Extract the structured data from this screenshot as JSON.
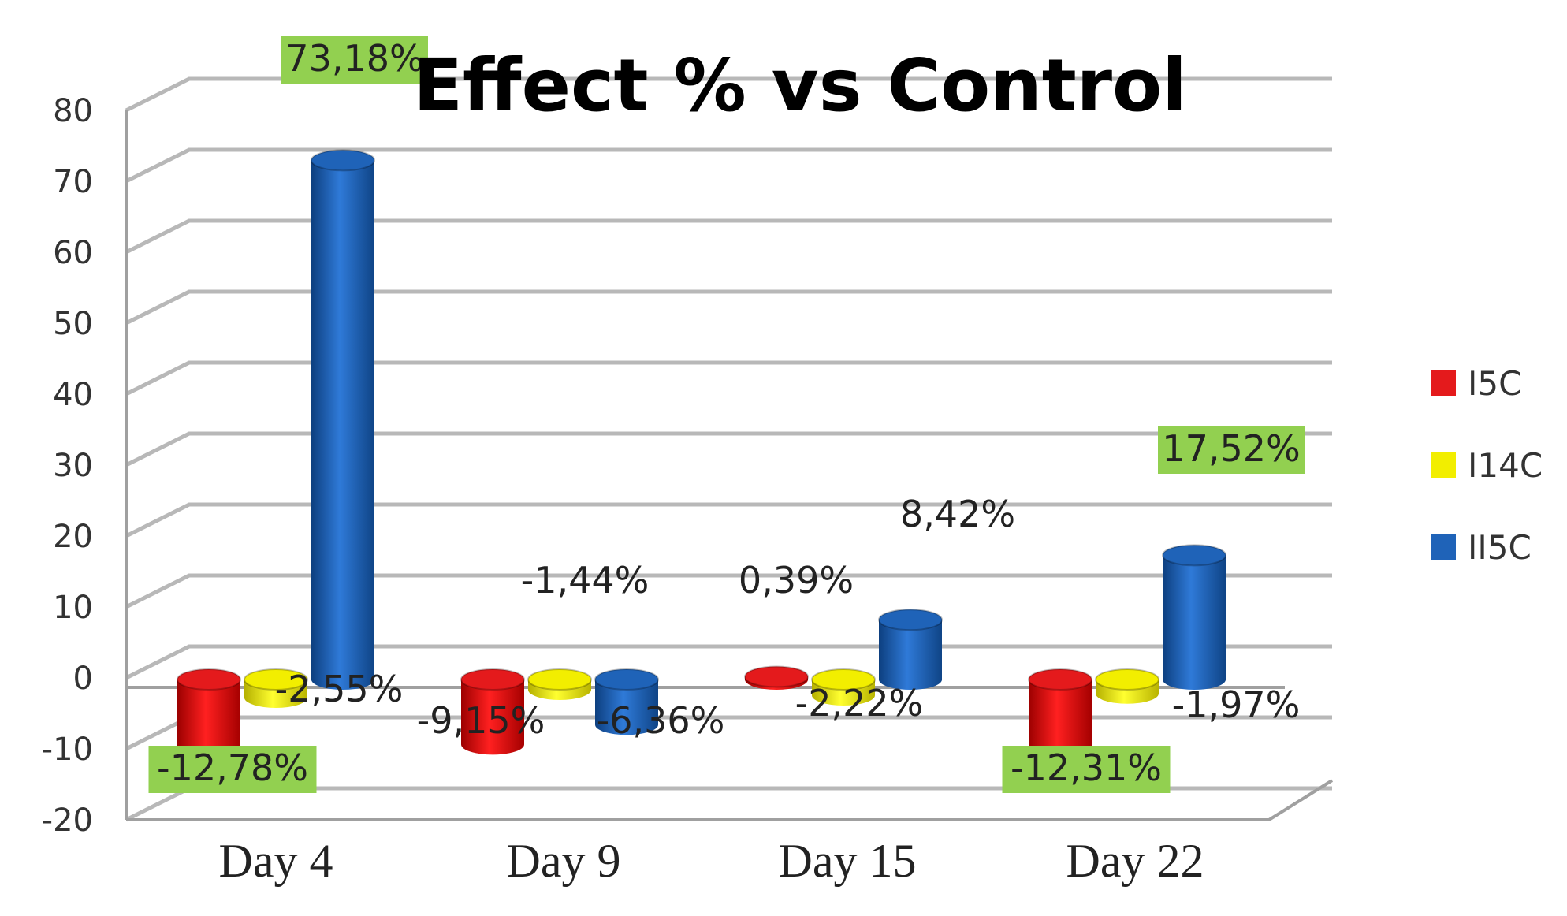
{
  "chart_data": {
    "type": "bar",
    "title": "Effect % vs Control",
    "xlabel": "",
    "ylabel": "",
    "ylim": [
      -20,
      80
    ],
    "yticks": [
      80,
      70,
      60,
      50,
      40,
      30,
      20,
      10,
      0,
      -10,
      -20
    ],
    "grid": true,
    "legend_position": "right",
    "categories": [
      "Day 4",
      "Day 9",
      "Day 15",
      "Day 22"
    ],
    "series": [
      {
        "name": "I5C",
        "color": "#e41a1c",
        "values": [
          -12.78,
          -9.15,
          0.39,
          -12.31
        ],
        "labels": [
          "-12,78%",
          "-9,15%",
          "0,39%",
          "-12,31%"
        ],
        "highlighted": [
          true,
          false,
          false,
          true
        ]
      },
      {
        "name": "I14C",
        "color": "#f2ee00",
        "values": [
          -2.55,
          -1.44,
          -2.22,
          -1.97
        ],
        "labels": [
          "-2,55%",
          "-1,44%",
          "-2,22%",
          "-1,97%"
        ],
        "highlighted": [
          false,
          false,
          false,
          false
        ]
      },
      {
        "name": "II5C",
        "color": "#1f63b8",
        "values": [
          73.18,
          -6.36,
          8.42,
          17.52
        ],
        "labels": [
          "73,18%",
          "-6,36%",
          "8,42%",
          "17,52%"
        ],
        "highlighted": [
          true,
          false,
          false,
          true
        ]
      }
    ],
    "highlight_color": "#92d050"
  }
}
